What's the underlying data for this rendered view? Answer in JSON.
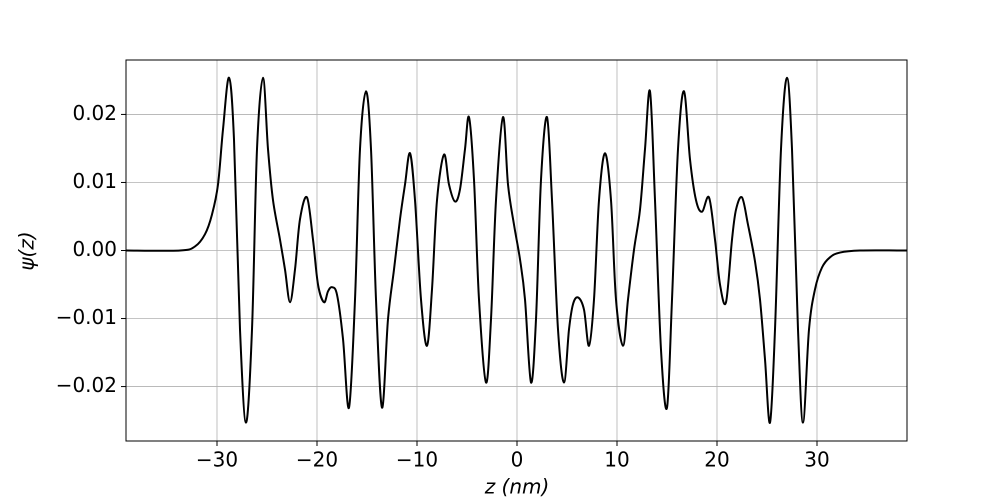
{
  "chart_data": {
    "type": "line",
    "xlabel": "z (nm)",
    "ylabel": "ψ(z)",
    "color": "#000000",
    "grid": true,
    "xlim": [
      -39.1,
      39.0
    ],
    "ylim": [
      -0.028,
      0.028
    ],
    "xticks": [
      {
        "value": -30,
        "label": "−30"
      },
      {
        "value": -20,
        "label": "−20"
      },
      {
        "value": -10,
        "label": "−10"
      },
      0,
      10,
      20,
      30
    ],
    "yticks": [
      {
        "value": -0.02,
        "label": "−0.02"
      },
      {
        "value": -0.01,
        "label": "−0.01"
      },
      {
        "value": 0,
        "label": "0.00"
      },
      0.01,
      0.02
    ],
    "x": [
      -39.1,
      -33.7,
      -32.2,
      -31.2,
      -30.5,
      -29.9,
      -29.4,
      -28.8,
      -28.3,
      -27.7,
      -27.1,
      -26.5,
      -26.0,
      -25.4,
      -24.9,
      -24.4,
      -23.7,
      -23.2,
      -22.7,
      -22.2,
      -21.7,
      -21.0,
      -20.4,
      -19.9,
      -19.3,
      -18.9,
      -18.5,
      -18.0,
      -17.4,
      -16.8,
      -16.2,
      -15.7,
      -15.1,
      -14.6,
      -14.1,
      -13.5,
      -12.9,
      -12.3,
      -11.7,
      -11.2,
      -10.7,
      -10.2,
      -9.6,
      -9.0,
      -8.5,
      -8.0,
      -7.3,
      -6.8,
      -6.2,
      -5.7,
      -5.2,
      -4.8,
      -4.3,
      -3.8,
      -3.1,
      -2.6,
      -2.1,
      -1.4,
      -0.9,
      -0.3,
      0.3,
      0.8,
      1.4,
      1.9,
      2.4,
      3.0,
      3.5,
      4.1,
      4.7,
      5.2,
      5.6,
      6.1,
      6.7,
      7.2,
      7.7,
      8.2,
      8.8,
      9.4,
      9.9,
      10.6,
      11.1,
      11.7,
      12.3,
      12.8,
      13.3,
      13.8,
      14.4,
      15.0,
      15.5,
      16.1,
      16.7,
      17.3,
      17.9,
      18.5,
      19.2,
      19.8,
      20.3,
      20.9,
      21.5,
      21.9,
      22.5,
      23.1,
      23.8,
      24.3,
      24.8,
      25.3,
      25.8,
      26.4,
      27.0,
      27.5,
      28.1,
      28.6,
      29.2,
      29.8,
      30.5,
      31.3,
      32.3,
      34.3,
      39.0
    ],
    "values": [
      0,
      0,
      0.0006,
      0.0024,
      0.0053,
      0.0097,
      0.0178,
      0.0254,
      0.0163,
      -0.0116,
      -0.0253,
      -0.0116,
      0.0149,
      0.0254,
      0.0149,
      0.0074,
      0.0016,
      -0.0028,
      -0.0076,
      -0.0028,
      0.0046,
      0.0078,
      0.0016,
      -0.005,
      -0.0076,
      -0.006,
      -0.0054,
      -0.0065,
      -0.013,
      -0.0231,
      -0.0072,
      0.0149,
      0.0234,
      0.0149,
      -0.0072,
      -0.0231,
      -0.0101,
      -0.0028,
      0.0046,
      0.0097,
      0.0143,
      0.0074,
      -0.0072,
      -0.014,
      -0.0057,
      0.0074,
      0.0141,
      0.0097,
      0.0072,
      0.009,
      0.0149,
      0.0196,
      0.0104,
      -0.0072,
      -0.0194,
      -0.0101,
      0.0074,
      0.0196,
      0.0097,
      0.0038,
      -0.0013,
      -0.0072,
      -0.0194,
      -0.0101,
      0.0104,
      0.0196,
      0.0074,
      -0.0116,
      -0.0194,
      -0.0116,
      -0.0079,
      -0.0069,
      -0.0087,
      -0.014,
      -0.0072,
      0.0074,
      0.0143,
      0.0074,
      -0.0072,
      -0.014,
      -0.0072,
      0.0001,
      0.006,
      0.0149,
      0.0234,
      0.0074,
      -0.0146,
      -0.0231,
      -0.0072,
      0.0149,
      0.0234,
      0.0134,
      0.0074,
      0.0057,
      0.0078,
      0.0016,
      -0.005,
      -0.0076,
      0.0016,
      0.006,
      0.0078,
      0.0038,
      -0.0016,
      -0.0072,
      -0.016,
      -0.0253,
      -0.0116,
      0.0149,
      0.0254,
      0.0149,
      -0.0116,
      -0.0253,
      -0.0116,
      -0.0057,
      -0.0025,
      -0.001,
      -0.0003,
      0,
      0
    ]
  }
}
